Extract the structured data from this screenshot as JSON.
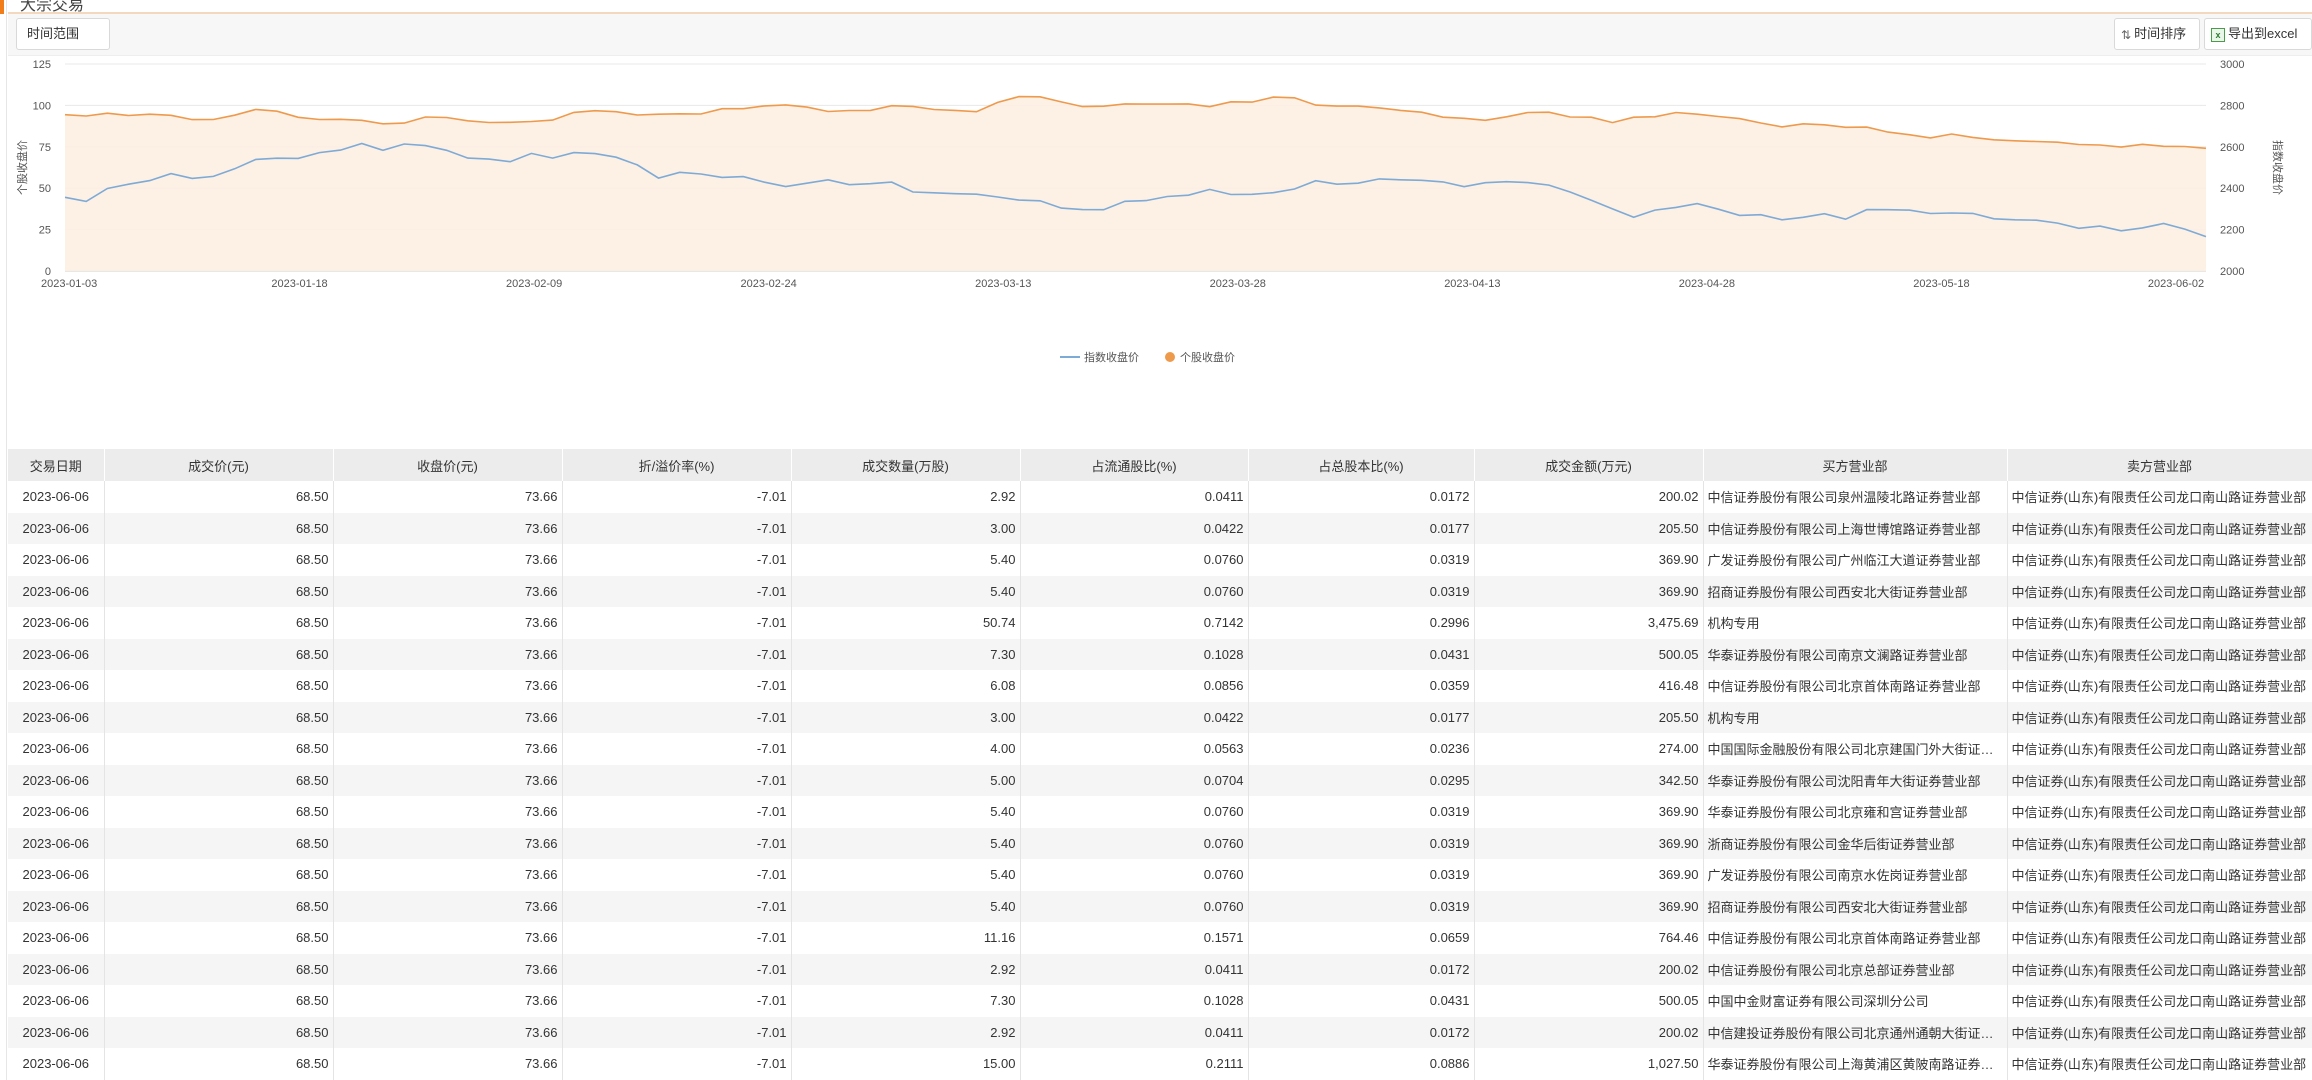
{
  "page": {
    "title": "大宗交易"
  },
  "toolbar": {
    "range_label": "时间范围",
    "sort_label": "时间排序",
    "export_label": "导出到excel",
    "sort_icon": "sort-arrows-icon",
    "export_icon": "excel-icon"
  },
  "chart_data": {
    "type": "area",
    "title": "",
    "ylabel_left": "个股收盘价",
    "ylabel_right": "指数收盘价",
    "ylim_left": [
      0,
      125
    ],
    "ylim_right": [
      2000,
      3000
    ],
    "yticks_left": [
      0,
      25,
      50,
      75,
      100,
      125
    ],
    "yticks_right": [
      2000,
      2200,
      2400,
      2600,
      2800,
      3000
    ],
    "x_tick_labels": [
      "2023-01-03",
      "2023-01-18",
      "2023-02-09",
      "2023-02-24",
      "2023-03-13",
      "2023-03-28",
      "2023-04-13",
      "2023-04-28",
      "2023-05-18",
      "2023-06-02"
    ],
    "grid": true,
    "legend_position": "bottom",
    "series": [
      {
        "name": "指数收盘价",
        "axis": "left",
        "color": "#7eaad6",
        "values": [
          44.5,
          42.0,
          49.8,
          52.4,
          54.6,
          58.8,
          55.9,
          57.1,
          61.7,
          67.4,
          68.1,
          68.0,
          71.5,
          73.0,
          77.0,
          72.9,
          76.7,
          75.7,
          72.9,
          68.2,
          67.6,
          66.0,
          71.0,
          68.2,
          71.5,
          70.9,
          68.7,
          64.1,
          56.1,
          59.6,
          58.6,
          56.5,
          57.0,
          53.6,
          51.0,
          53.0,
          55.1,
          52.1,
          52.7,
          53.7,
          47.7,
          47.2,
          46.7,
          46.4,
          44.7,
          42.8,
          42.4,
          38.0,
          37.1,
          37.0,
          42.1,
          42.5,
          45.0,
          45.8,
          49.3,
          46.2,
          46.3,
          47.3,
          49.5,
          54.5,
          52.4,
          53.0,
          55.6,
          55.1,
          54.8,
          53.8,
          50.9,
          53.3,
          53.9,
          53.4,
          51.9,
          47.7,
          42.7,
          37.5,
          32.4,
          36.8,
          38.4,
          40.7,
          37.3,
          33.6,
          34.0,
          30.9,
          32.4,
          34.6,
          31.3,
          37.1,
          37.0,
          36.8,
          34.7,
          35.0,
          34.8,
          31.5,
          30.9,
          30.7,
          28.9,
          25.8,
          27.1,
          24.3,
          26.0,
          28.7,
          25.3,
          20.8
        ]
      },
      {
        "name": "个股收盘价",
        "axis": "left",
        "color": "#ee9a4d",
        "values": [
          94.4,
          93.6,
          95.3,
          93.9,
          94.7,
          94.0,
          91.4,
          91.5,
          94.1,
          97.6,
          96.5,
          92.8,
          91.5,
          91.6,
          91.0,
          88.9,
          89.3,
          93.0,
          92.7,
          90.7,
          89.7,
          89.8,
          90.3,
          91.1,
          95.8,
          96.8,
          96.2,
          94.2,
          94.7,
          94.9,
          94.8,
          98.0,
          98.0,
          99.7,
          100.3,
          99.0,
          96.3,
          96.9,
          97.0,
          99.8,
          99.4,
          97.5,
          97.0,
          96.2,
          101.8,
          105.3,
          105.2,
          102.1,
          99.3,
          99.5,
          100.9,
          100.8,
          100.8,
          100.9,
          99.2,
          102.2,
          102.0,
          105.0,
          104.6,
          100.2,
          99.6,
          99.6,
          98.5,
          97.0,
          95.9,
          92.9,
          92.2,
          91.0,
          93.1,
          95.7,
          95.9,
          93.0,
          92.9,
          89.6,
          92.9,
          93.1,
          95.7,
          94.7,
          93.3,
          92.0,
          89.4,
          87.0,
          88.9,
          88.3,
          86.8,
          86.9,
          83.9,
          82.3,
          80.4,
          82.7,
          80.7,
          79.2,
          78.6,
          78.2,
          77.8,
          76.4,
          76.1,
          74.8,
          76.5,
          75.3,
          75.2,
          74.1
        ]
      }
    ]
  },
  "table": {
    "columns": [
      "交易日期",
      "成交价(元)",
      "收盘价(元)",
      "折/溢价率(%)",
      "成交数量(万股)",
      "占流通股比(%)",
      "占总股本比(%)",
      "成交金额(万元)",
      "买方营业部",
      "卖方营业部"
    ],
    "rows": [
      [
        "2023-06-06",
        "68.50",
        "73.66",
        "-7.01",
        "2.92",
        "0.0411",
        "0.0172",
        "200.02",
        "中信证券股份有限公司泉州温陵北路证券营业部",
        "中信证券(山东)有限责任公司龙口南山路证券营业部"
      ],
      [
        "2023-06-06",
        "68.50",
        "73.66",
        "-7.01",
        "3.00",
        "0.0422",
        "0.0177",
        "205.50",
        "中信证券股份有限公司上海世博馆路证券营业部",
        "中信证券(山东)有限责任公司龙口南山路证券营业部"
      ],
      [
        "2023-06-06",
        "68.50",
        "73.66",
        "-7.01",
        "5.40",
        "0.0760",
        "0.0319",
        "369.90",
        "广发证券股份有限公司广州临江大道证券营业部",
        "中信证券(山东)有限责任公司龙口南山路证券营业部"
      ],
      [
        "2023-06-06",
        "68.50",
        "73.66",
        "-7.01",
        "5.40",
        "0.0760",
        "0.0319",
        "369.90",
        "招商证券股份有限公司西安北大街证券营业部",
        "中信证券(山东)有限责任公司龙口南山路证券营业部"
      ],
      [
        "2023-06-06",
        "68.50",
        "73.66",
        "-7.01",
        "50.74",
        "0.7142",
        "0.2996",
        "3,475.69",
        "机构专用",
        "中信证券(山东)有限责任公司龙口南山路证券营业部"
      ],
      [
        "2023-06-06",
        "68.50",
        "73.66",
        "-7.01",
        "7.30",
        "0.1028",
        "0.0431",
        "500.05",
        "华泰证券股份有限公司南京文澜路证券营业部",
        "中信证券(山东)有限责任公司龙口南山路证券营业部"
      ],
      [
        "2023-06-06",
        "68.50",
        "73.66",
        "-7.01",
        "6.08",
        "0.0856",
        "0.0359",
        "416.48",
        "中信证券股份有限公司北京首体南路证券营业部",
        "中信证券(山东)有限责任公司龙口南山路证券营业部"
      ],
      [
        "2023-06-06",
        "68.50",
        "73.66",
        "-7.01",
        "3.00",
        "0.0422",
        "0.0177",
        "205.50",
        "机构专用",
        "中信证券(山东)有限责任公司龙口南山路证券营业部"
      ],
      [
        "2023-06-06",
        "68.50",
        "73.66",
        "-7.01",
        "4.00",
        "0.0563",
        "0.0236",
        "274.00",
        "中国国际金融股份有限公司北京建国门外大街证券营业部",
        "中信证券(山东)有限责任公司龙口南山路证券营业部"
      ],
      [
        "2023-06-06",
        "68.50",
        "73.66",
        "-7.01",
        "5.00",
        "0.0704",
        "0.0295",
        "342.50",
        "华泰证券股份有限公司沈阳青年大街证券营业部",
        "中信证券(山东)有限责任公司龙口南山路证券营业部"
      ],
      [
        "2023-06-06",
        "68.50",
        "73.66",
        "-7.01",
        "5.40",
        "0.0760",
        "0.0319",
        "369.90",
        "华泰证券股份有限公司北京雍和宫证券营业部",
        "中信证券(山东)有限责任公司龙口南山路证券营业部"
      ],
      [
        "2023-06-06",
        "68.50",
        "73.66",
        "-7.01",
        "5.40",
        "0.0760",
        "0.0319",
        "369.90",
        "浙商证券股份有限公司金华后街证券营业部",
        "中信证券(山东)有限责任公司龙口南山路证券营业部"
      ],
      [
        "2023-06-06",
        "68.50",
        "73.66",
        "-7.01",
        "5.40",
        "0.0760",
        "0.0319",
        "369.90",
        "广发证券股份有限公司南京水佐岗证券营业部",
        "中信证券(山东)有限责任公司龙口南山路证券营业部"
      ],
      [
        "2023-06-06",
        "68.50",
        "73.66",
        "-7.01",
        "5.40",
        "0.0760",
        "0.0319",
        "369.90",
        "招商证券股份有限公司西安北大街证券营业部",
        "中信证券(山东)有限责任公司龙口南山路证券营业部"
      ],
      [
        "2023-06-06",
        "68.50",
        "73.66",
        "-7.01",
        "11.16",
        "0.1571",
        "0.0659",
        "764.46",
        "中信证券股份有限公司北京首体南路证券营业部",
        "中信证券(山东)有限责任公司龙口南山路证券营业部"
      ],
      [
        "2023-06-06",
        "68.50",
        "73.66",
        "-7.01",
        "2.92",
        "0.0411",
        "0.0172",
        "200.02",
        "中信证券股份有限公司北京总部证券营业部",
        "中信证券(山东)有限责任公司龙口南山路证券营业部"
      ],
      [
        "2023-06-06",
        "68.50",
        "73.66",
        "-7.01",
        "7.30",
        "0.1028",
        "0.0431",
        "500.05",
        "中国中金财富证券有限公司深圳分公司",
        "中信证券(山东)有限责任公司龙口南山路证券营业部"
      ],
      [
        "2023-06-06",
        "68.50",
        "73.66",
        "-7.01",
        "2.92",
        "0.0411",
        "0.0172",
        "200.02",
        "中信建投证券股份有限公司北京通州通朝大街证券营业部",
        "中信证券(山东)有限责任公司龙口南山路证券营业部"
      ],
      [
        "2023-06-06",
        "68.50",
        "73.66",
        "-7.01",
        "15.00",
        "0.2111",
        "0.0886",
        "1,027.50",
        "华泰证券股份有限公司上海黄浦区黄陂南路证券营业部",
        "中信证券(山东)有限责任公司龙口南山路证券营业部"
      ]
    ]
  }
}
